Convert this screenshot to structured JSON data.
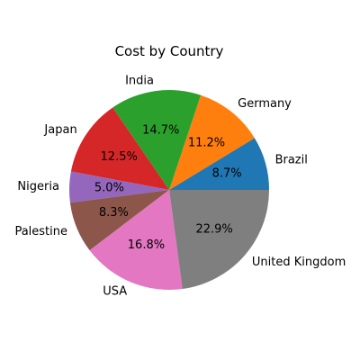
{
  "chart_data": {
    "type": "pie",
    "title": "Cost by Country",
    "start_angle": 0,
    "direction": "counterclockwise",
    "slices": [
      {
        "label": "Brazil",
        "value": 8.7,
        "pct_label": "8.7%",
        "color": "#1f77b4"
      },
      {
        "label": "Germany",
        "value": 11.2,
        "pct_label": "11.2%",
        "color": "#ff7f0e"
      },
      {
        "label": "India",
        "value": 14.7,
        "pct_label": "14.7%",
        "color": "#2ca02c"
      },
      {
        "label": "Japan",
        "value": 12.5,
        "pct_label": "12.5%",
        "color": "#d62728"
      },
      {
        "label": "Nigeria",
        "value": 5.0,
        "pct_label": "5.0%",
        "color": "#9467bd"
      },
      {
        "label": "Palestine",
        "value": 8.3,
        "pct_label": "8.3%",
        "color": "#8c564b"
      },
      {
        "label": "USA",
        "value": 16.8,
        "pct_label": "16.8%",
        "color": "#e377c2"
      },
      {
        "label": "United Kingdom",
        "value": 22.9,
        "pct_label": "22.9%",
        "color": "#7f7f7f"
      }
    ]
  }
}
